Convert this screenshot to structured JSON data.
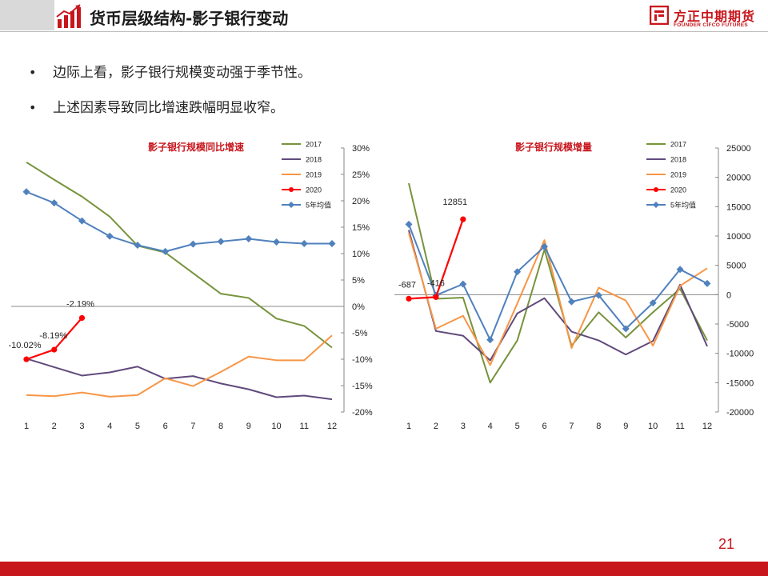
{
  "header": {
    "title": "货币层级结构-影子银行变动",
    "logo_cn": "方正中期期货",
    "logo_en": "FOUNDER CIFCO FUTURES",
    "icon": "chart-growth-icon"
  },
  "bullets": [
    "边际上看，影子银行规模变动强于季节性。",
    "上述因素导致同比增速跌幅明显收窄。"
  ],
  "colors": {
    "brand_red": "#c8161d",
    "s2017": "#77933c",
    "s2018": "#604a7b",
    "s2019": "#f79646",
    "s2020": "#ff0000",
    "avg5": "#4f81bd"
  },
  "chart_data": [
    {
      "type": "line",
      "title": "影子银行规模同比增速",
      "categories": [
        "1",
        "2",
        "3",
        "4",
        "5",
        "6",
        "7",
        "8",
        "9",
        "10",
        "11",
        "12"
      ],
      "y_axis_position": "right",
      "ylim": [
        -20,
        30
      ],
      "yticks": [
        30,
        25,
        20,
        15,
        10,
        5,
        0,
        -5,
        -10,
        -15,
        -20
      ],
      "ytick_labels": [
        "30%",
        "25%",
        "20%",
        "15%",
        "10%",
        "5%",
        "0%",
        "-5%",
        "-10%",
        "-15%",
        "-20%"
      ],
      "legend_position": "top-right",
      "series": [
        {
          "name": "2017",
          "color": "#77933c",
          "marker": "none",
          "values": [
            27.3,
            24.0,
            20.8,
            17.0,
            11.5,
            10.2,
            6.3,
            2.4,
            1.6,
            -2.3,
            -3.7,
            -7.8
          ]
        },
        {
          "name": "2018",
          "color": "#604a7b",
          "marker": "none",
          "values": [
            -9.9,
            -11.5,
            -13.1,
            -12.5,
            -11.4,
            -13.7,
            -13.2,
            -14.6,
            -15.7,
            -17.2,
            -16.9,
            -17.6
          ]
        },
        {
          "name": "2019",
          "color": "#f79646",
          "marker": "none",
          "values": [
            -16.8,
            -17.0,
            -16.3,
            -17.1,
            -16.8,
            -13.6,
            -15.1,
            -12.4,
            -9.5,
            -10.2,
            -10.2,
            -5.5
          ]
        },
        {
          "name": "2020",
          "color": "#ff0000",
          "marker": "circle",
          "values": [
            -10.02,
            -8.19,
            -2.19,
            null,
            null,
            null,
            null,
            null,
            null,
            null,
            null,
            null
          ]
        },
        {
          "name": "5年均值",
          "color": "#4f81bd",
          "marker": "diamond",
          "values": [
            21.7,
            19.6,
            16.2,
            13.3,
            11.6,
            10.4,
            11.8,
            12.3,
            12.8,
            12.2,
            11.9,
            11.9
          ]
        }
      ],
      "annotations": [
        {
          "text": "-10.02%",
          "series": "2020",
          "index": 0
        },
        {
          "text": "-8.19%",
          "series": "2020",
          "index": 1
        },
        {
          "text": "-2.19%",
          "series": "2020",
          "index": 2
        }
      ]
    },
    {
      "type": "line",
      "title": "影子银行规模增量",
      "categories": [
        "1",
        "2",
        "3",
        "4",
        "5",
        "6",
        "7",
        "8",
        "9",
        "10",
        "11",
        "12"
      ],
      "y_axis_position": "right",
      "ylim": [
        -20000,
        25000
      ],
      "yticks": [
        25000,
        20000,
        15000,
        10000,
        5000,
        0,
        -5000,
        -10000,
        -15000,
        -20000
      ],
      "ytick_labels": [
        "25000",
        "20000",
        "15000",
        "10000",
        "5000",
        "0",
        "-5000",
        "-10000",
        "-15000",
        "-20000"
      ],
      "legend_position": "top-right",
      "series": [
        {
          "name": "2017",
          "color": "#77933c",
          "marker": "none",
          "values": [
            19000,
            -700,
            -500,
            -15000,
            -7800,
            7700,
            -8700,
            -3000,
            -7300,
            -3000,
            1000,
            -7800
          ]
        },
        {
          "name": "2018",
          "color": "#604a7b",
          "marker": "none",
          "values": [
            11000,
            -6200,
            -7000,
            -11200,
            -3200,
            -600,
            -6300,
            -7800,
            -10200,
            -7900,
            1700,
            -8800
          ]
        },
        {
          "name": "2019",
          "color": "#f79646",
          "marker": "none",
          "values": [
            10500,
            -5800,
            -3600,
            -12000,
            -1500,
            9300,
            -9100,
            1200,
            -1000,
            -8700,
            1500,
            4500
          ]
        },
        {
          "name": "2020",
          "color": "#ff0000",
          "marker": "circle",
          "values": [
            -687,
            -416,
            12851,
            null,
            null,
            null,
            null,
            null,
            null,
            null,
            null,
            null
          ]
        },
        {
          "name": "5年均值",
          "color": "#4f81bd",
          "marker": "diamond",
          "values": [
            12000,
            -100,
            1800,
            -7700,
            3900,
            8200,
            -1200,
            -100,
            -5800,
            -1400,
            4300,
            1900
          ]
        }
      ],
      "annotations": [
        {
          "text": "-687",
          "series": "2020",
          "index": 0
        },
        {
          "text": "-416",
          "series": "2020",
          "index": 1
        },
        {
          "text": "12851",
          "series": "2020",
          "index": 2
        }
      ]
    }
  ],
  "page_number": "21"
}
